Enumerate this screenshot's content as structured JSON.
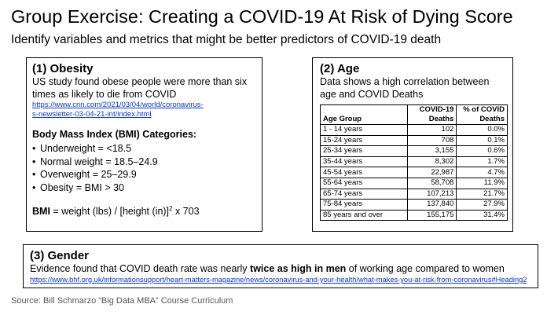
{
  "title": "Group Exercise:  Creating a COVID-19 At Risk of Dying Score",
  "subtitle": "Identify variables and metrics that might be better predictors of COVID-19 death",
  "obesity": {
    "heading": "(1) Obesity",
    "text": "US study found obese people were more than six times as likely to die from COVID",
    "link_lines": [
      "https://www.cnn.com/2021/03/04/world/coronavirus-",
      "s-newsletter-03-04-21-int/index.html"
    ],
    "bmi_heading": "Body Mass Index (BMI) Categories:",
    "categories": [
      "Underweight = <18.5",
      "Normal weight = 18.5–24.9",
      "Overweight = 25–29.9",
      "Obesity = BMI > 30"
    ],
    "formula_label": "BMI",
    "formula_mid": " = weight (lbs) / [height (in)]",
    "formula_sup": "2",
    "formula_end": " x 703"
  },
  "age": {
    "heading": "(2) Age",
    "text": "Data shows a high correlation between age and COVID Deaths",
    "columns": [
      "Age Group",
      "COVID-19 Deaths",
      "% of COVID Deaths"
    ],
    "rows": [
      [
        "1 - 14 years",
        "102",
        "0.0%"
      ],
      [
        "15-24 years",
        "708",
        "0.1%"
      ],
      [
        "25-34 years",
        "3,155",
        "0.6%"
      ],
      [
        "35-44 years",
        "8,302",
        "1.7%"
      ],
      [
        "45-54 years",
        "22,987",
        "4.7%"
      ],
      [
        "55-64 years",
        "58,708",
        "11.9%"
      ],
      [
        "65-74 years",
        "107,213",
        "21.7%"
      ],
      [
        "75-84 years",
        "137,840",
        "27.9%"
      ],
      [
        "85 years and over",
        "155,175",
        "31.4%"
      ]
    ]
  },
  "gender": {
    "heading": "(3) Gender",
    "text_before": "Evidence found that COVID death rate was nearly ",
    "text_bold": "twice as high in men",
    "text_after": " of working age compared to women",
    "link": "https://www.bhf.org.uk/informationsupport/heart-matters-magazine/news/coronavirus-and-your-health/what-makes-you-at-risk-from-coronavirus#Heading2"
  },
  "source": "Source: Bill Schmarzo “Big Data MBA” Course Curriculum"
}
